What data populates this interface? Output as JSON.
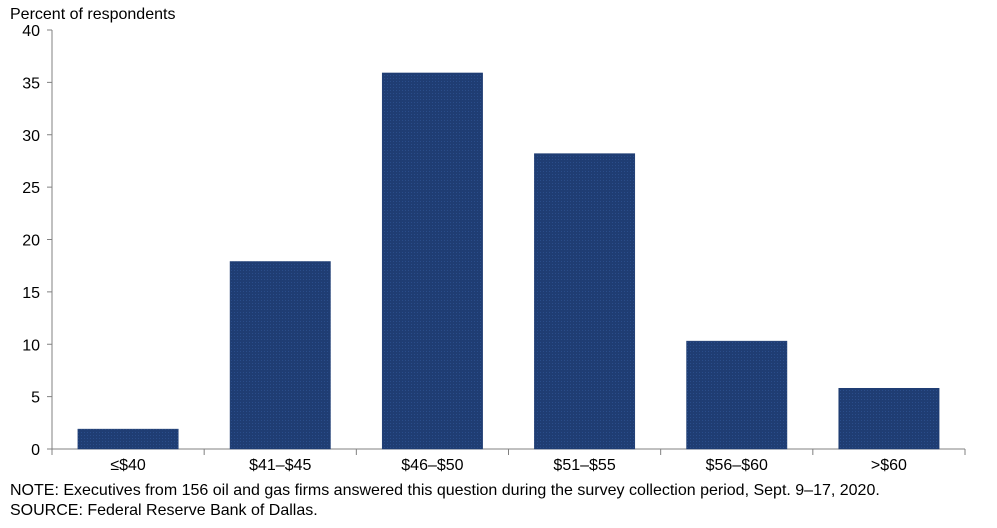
{
  "chart_data": {
    "type": "bar",
    "ylabel": "Percent of respondents",
    "xlabel": "",
    "categories": [
      "≤$40",
      "$41–$45",
      "$46–$50",
      "$51–$55",
      "$56–$60",
      ">$60"
    ],
    "values": [
      1.9,
      17.9,
      35.9,
      28.2,
      10.3,
      5.8
    ],
    "ylim": [
      0,
      40
    ],
    "yticks": [
      0,
      5,
      10,
      15,
      20,
      25,
      30,
      35,
      40
    ],
    "grid": false,
    "bar_color": "#1f3d73"
  },
  "footnotes": {
    "note": "NOTE:  Executives  from  156  oil  and  gas  firms  answered  this  question  during  the  survey  collection  period,  Sept.  9–17,  2020.",
    "source": "SOURCE:  Federal  Reserve  Bank  of  Dallas."
  }
}
